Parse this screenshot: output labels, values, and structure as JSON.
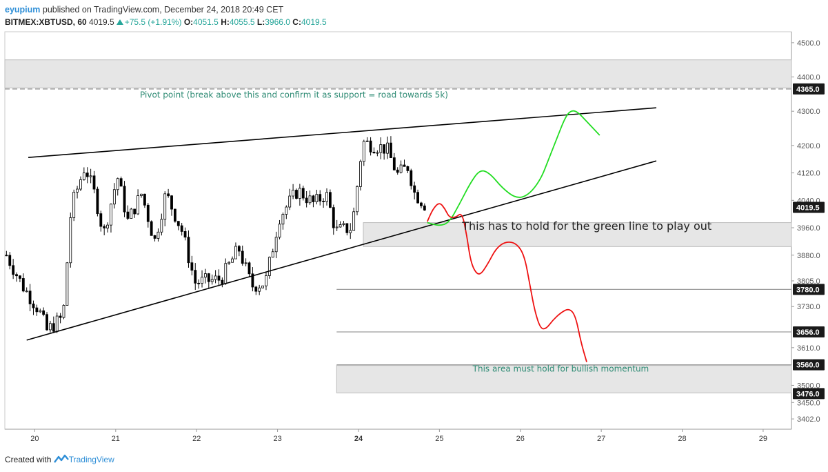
{
  "header": {
    "author": "eyupium",
    "published": "published on TradingView.com, December 24, 2018 20:49 CET",
    "symbol": "BITMEX:XBTUSD, 60",
    "last": "4019.5",
    "change": "+75.5 (+1.91%)",
    "o_label": "O:",
    "o_value": "4051.5",
    "h_label": "H:",
    "h_value": "4055.5",
    "l_label": "L:",
    "l_value": "3966.0",
    "c_label": "C:",
    "c_value": "4019.5"
  },
  "footer": {
    "created_with": "Created with",
    "brand": "TradingView"
  },
  "colors": {
    "up": "#26a69a",
    "down": "#000000",
    "green_path": "#22dd22",
    "red_path": "#ee1111",
    "zone": "#e6e6e6",
    "annotation": "#2e8b74",
    "line": "#000000"
  },
  "chart_data": {
    "type": "candlestick",
    "x_axis": {
      "ticks": [
        {
          "day": 20,
          "label": "20"
        },
        {
          "day": 21,
          "label": "21"
        },
        {
          "day": 22,
          "label": "22"
        },
        {
          "day": 23,
          "label": "23"
        },
        {
          "day": 24,
          "label": "24"
        },
        {
          "day": 25,
          "label": "25"
        },
        {
          "day": 26,
          "label": "26"
        },
        {
          "day": 27,
          "label": "27"
        },
        {
          "day": 28,
          "label": "28"
        },
        {
          "day": 29,
          "label": "29"
        }
      ],
      "range": [
        19.63,
        29.35
      ]
    },
    "y_axis": {
      "ticks": [
        3402,
        3450,
        3500,
        3610,
        3730,
        3805,
        3880,
        3960,
        4040,
        4120,
        4200,
        4300,
        4400,
        4500
      ],
      "tick_labels": [
        "3402.0",
        "3450.0",
        "3500.0",
        "3610.0",
        "3730.0",
        "3805.0",
        "3880.0",
        "3960.0",
        "4040.0",
        "4120.0",
        "4200.0",
        "4300.0",
        "4400.0",
        "4500.0"
      ],
      "range": [
        3372,
        4532
      ]
    },
    "price_labels": [
      {
        "value": 4365,
        "label": "4365.0"
      },
      {
        "value": 4019.5,
        "label": "4019.5"
      },
      {
        "value": 3780,
        "label": "3780.0"
      },
      {
        "value": 3656,
        "label": "3656.0"
      },
      {
        "value": 3560,
        "label": "3560.0"
      },
      {
        "value": 3476,
        "label": "3476.0"
      }
    ],
    "candle_keypoints": [
      [
        19.65,
        3880
      ],
      [
        19.85,
        3790
      ],
      [
        20.05,
        3720
      ],
      [
        20.15,
        3660
      ],
      [
        20.35,
        3700
      ],
      [
        20.45,
        4020
      ],
      [
        20.62,
        4140
      ],
      [
        20.75,
        4050
      ],
      [
        20.85,
        3940
      ],
      [
        21.02,
        4110
      ],
      [
        21.15,
        3980
      ],
      [
        21.32,
        4060
      ],
      [
        21.48,
        3920
      ],
      [
        21.62,
        4060
      ],
      [
        21.82,
        3950
      ],
      [
        21.98,
        3800
      ],
      [
        22.3,
        3810
      ],
      [
        22.52,
        3900
      ],
      [
        22.68,
        3790
      ],
      [
        22.85,
        3800
      ],
      [
        23.02,
        3990
      ],
      [
        23.25,
        4070
      ],
      [
        23.45,
        4030
      ],
      [
        23.6,
        4060
      ],
      [
        23.72,
        3950
      ],
      [
        23.92,
        3960
      ],
      [
        24.05,
        4210
      ],
      [
        24.2,
        4200
      ],
      [
        24.35,
        4190
      ],
      [
        24.48,
        4115
      ],
      [
        24.62,
        4140
      ],
      [
        24.68,
        4065
      ],
      [
        24.85,
        4020
      ]
    ],
    "trendlines": [
      {
        "from": [
          19.92,
          4165
        ],
        "to": [
          27.68,
          4310
        ]
      },
      {
        "from": [
          19.9,
          3632
        ],
        "to": [
          27.68,
          4155
        ]
      }
    ],
    "zones": [
      {
        "from": 19.63,
        "to": 29.35,
        "top": 4450,
        "bottom": 4368
      },
      {
        "from": 24.06,
        "to": 29.35,
        "top": 3975,
        "bottom": 3905
      },
      {
        "from": 23.73,
        "to": 29.35,
        "top": 3558,
        "bottom": 3478
      }
    ],
    "hlines": [
      {
        "from": 19.63,
        "to": 29.35,
        "value": 4365,
        "style": "dashed"
      },
      {
        "from": 23.73,
        "to": 29.35,
        "value": 3780,
        "style": "solid"
      },
      {
        "from": 23.73,
        "to": 29.35,
        "value": 3656,
        "style": "solid"
      },
      {
        "from": 23.73,
        "to": 29.35,
        "value": 3560,
        "style": "solid"
      }
    ],
    "green_path": [
      [
        24.85,
        3975
      ],
      [
        25.0,
        3965
      ],
      [
        25.12,
        3975
      ],
      [
        25.25,
        4030
      ],
      [
        25.38,
        4090
      ],
      [
        25.5,
        4130
      ],
      [
        25.62,
        4120
      ],
      [
        25.78,
        4075
      ],
      [
        25.95,
        4045
      ],
      [
        26.1,
        4055
      ],
      [
        26.25,
        4100
      ],
      [
        26.35,
        4160
      ],
      [
        26.45,
        4220
      ],
      [
        26.55,
        4280
      ],
      [
        26.62,
        4302
      ],
      [
        26.7,
        4300
      ],
      [
        26.82,
        4270
      ],
      [
        26.98,
        4230
      ]
    ],
    "red_path": [
      [
        24.85,
        3978
      ],
      [
        24.92,
        4015
      ],
      [
        25.0,
        4035
      ],
      [
        25.07,
        4015
      ],
      [
        25.12,
        3990
      ],
      [
        25.2,
        3990
      ],
      [
        25.28,
        4005
      ],
      [
        25.34,
        3935
      ],
      [
        25.38,
        3870
      ],
      [
        25.43,
        3835
      ],
      [
        25.5,
        3820
      ],
      [
        25.6,
        3855
      ],
      [
        25.7,
        3900
      ],
      [
        25.82,
        3920
      ],
      [
        25.95,
        3915
      ],
      [
        26.05,
        3880
      ],
      [
        26.12,
        3790
      ],
      [
        26.18,
        3715
      ],
      [
        26.25,
        3665
      ],
      [
        26.32,
        3665
      ],
      [
        26.4,
        3690
      ],
      [
        26.5,
        3712
      ],
      [
        26.6,
        3725
      ],
      [
        26.68,
        3705
      ],
      [
        26.75,
        3625
      ],
      [
        26.82,
        3568
      ]
    ],
    "annotations": [
      {
        "day": 21.3,
        "value": 4340,
        "text": "Pivot point (break above this and confirm it as support = road towards 5k)",
        "size": 12,
        "color": "#2e8b74",
        "anchor": "start"
      },
      {
        "day": 25.28,
        "value": 3954,
        "text": "This has to hold for the green line to play out",
        "size": 16,
        "color": "#222222",
        "anchor": "start"
      },
      {
        "day": 26.5,
        "value": 3540,
        "text": "This area must hold for bullish momentum",
        "size": 12,
        "color": "#2e8b74",
        "anchor": "middle"
      }
    ]
  }
}
